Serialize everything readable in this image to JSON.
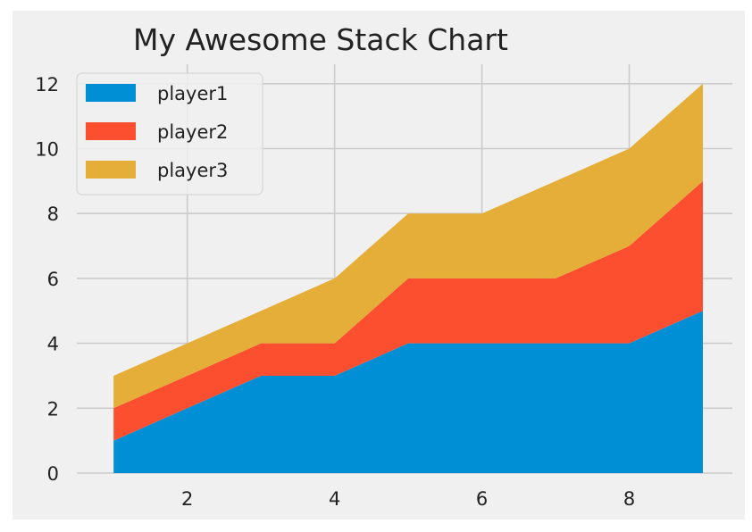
{
  "chart_data": {
    "type": "area",
    "stacked": true,
    "title": "My Awesome Stack Chart",
    "xlabel": "",
    "ylabel": "",
    "x": [
      1,
      2,
      3,
      4,
      5,
      6,
      7,
      8,
      9
    ],
    "series": [
      {
        "name": "player1",
        "color": "#008fd5",
        "values": [
          1,
          2,
          3,
          3,
          4,
          4,
          4,
          4,
          5
        ]
      },
      {
        "name": "player2",
        "color": "#fc4f30",
        "values": [
          1,
          1,
          1,
          1,
          2,
          2,
          2,
          3,
          4
        ]
      },
      {
        "name": "player3",
        "color": "#e5ae38",
        "values": [
          1,
          1,
          1,
          2,
          2,
          2,
          3,
          3,
          3
        ]
      }
    ],
    "xlim": [
      0.5,
      9.4
    ],
    "ylim": [
      0,
      12.6
    ],
    "xticks": [
      2,
      4,
      6,
      8
    ],
    "yticks": [
      0,
      2,
      4,
      6,
      8,
      10,
      12
    ],
    "grid": true,
    "legend_position": "top-left",
    "background": "#f0f0f0",
    "grid_color": "#cbcbcb"
  }
}
